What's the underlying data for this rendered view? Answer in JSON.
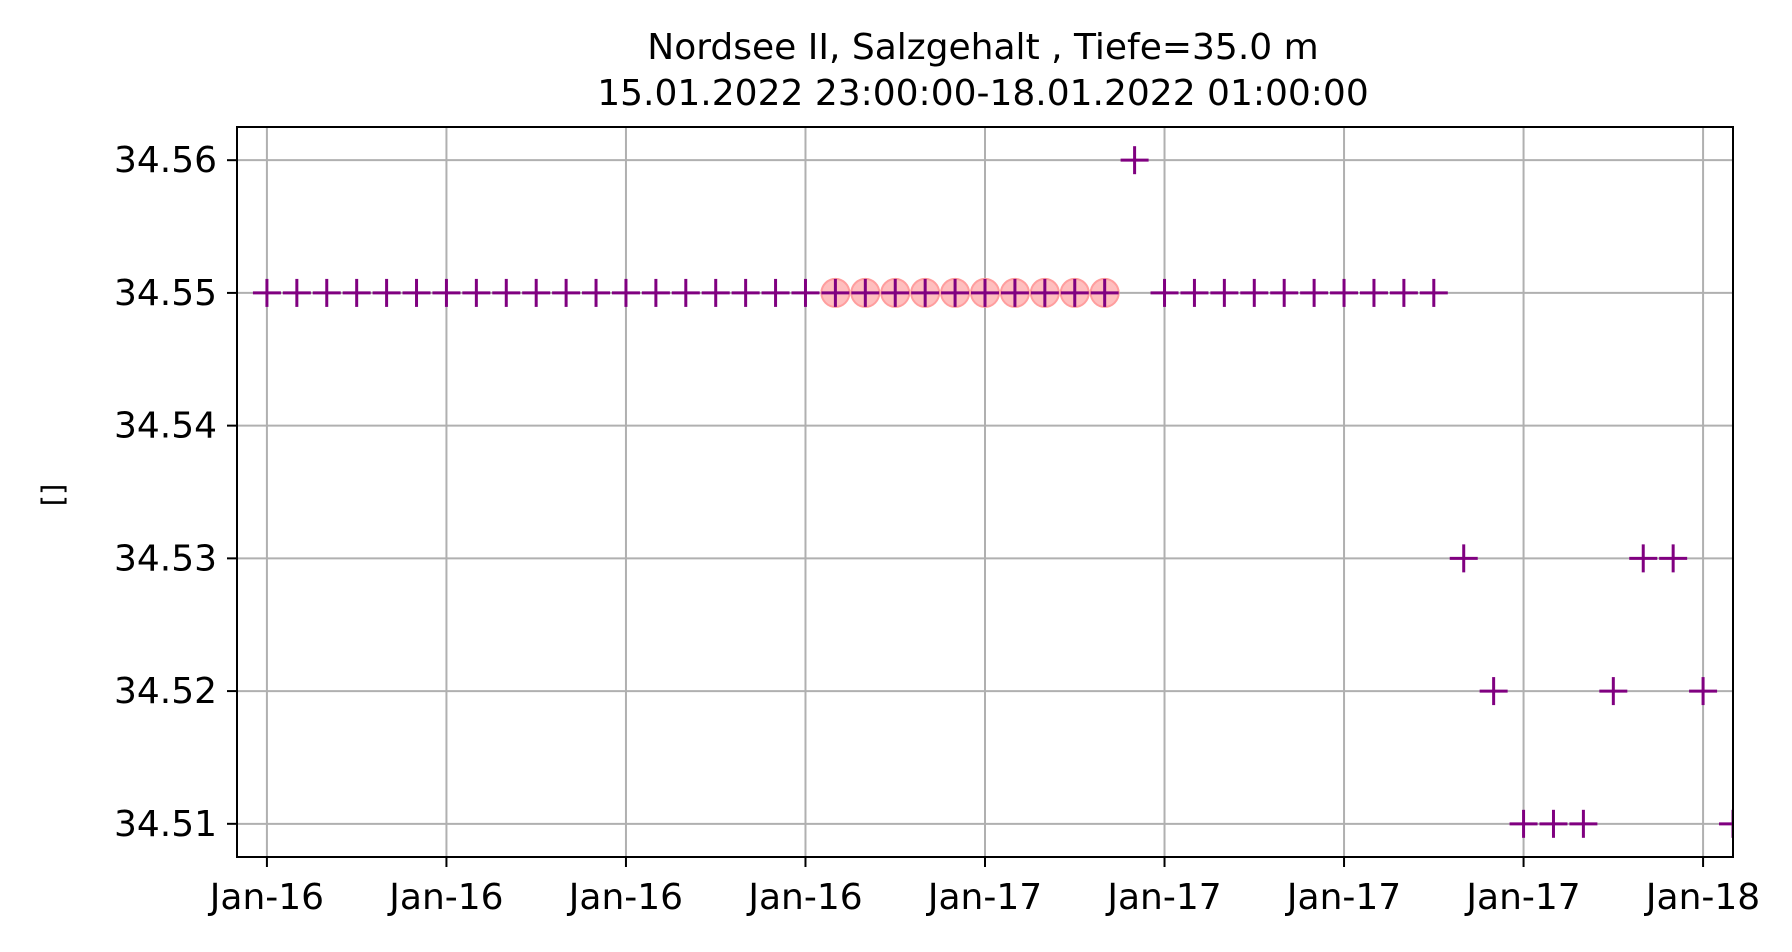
{
  "chart_data": {
    "type": "scatter",
    "title": "Nordsee II, Salzgehalt , Tiefe=35.0 m",
    "subtitle": "15.01.2022 23:00:00-18.01.2022 01:00:00",
    "xlabel": "",
    "ylabel": "[]",
    "x_ticks": [
      "Jan-16",
      "Jan-16",
      "Jan-16",
      "Jan-16",
      "Jan-17",
      "Jan-17",
      "Jan-17",
      "Jan-17",
      "Jan-18"
    ],
    "x_tick_values": [
      "2022-01-16 00:00",
      "2022-01-16 06:00",
      "2022-01-16 12:00",
      "2022-01-16 18:00",
      "2022-01-17 00:00",
      "2022-01-17 06:00",
      "2022-01-17 12:00",
      "2022-01-17 18:00",
      "2022-01-18 00:00"
    ],
    "y_ticks": [
      "34.51",
      "34.52",
      "34.53",
      "34.54",
      "34.55",
      "34.56"
    ],
    "xlim": [
      "2022-01-15 23:00",
      "2022-01-18 01:00"
    ],
    "ylim": [
      34.5075,
      34.5625
    ],
    "grid": true,
    "series": [
      {
        "marker": "plus",
        "color": "#800080",
        "x": [
          "2022-01-16 00:00",
          "2022-01-16 01:00",
          "2022-01-16 02:00",
          "2022-01-16 03:00",
          "2022-01-16 04:00",
          "2022-01-16 05:00",
          "2022-01-16 06:00",
          "2022-01-16 07:00",
          "2022-01-16 08:00",
          "2022-01-16 09:00",
          "2022-01-16 10:00",
          "2022-01-16 11:00",
          "2022-01-16 12:00",
          "2022-01-16 13:00",
          "2022-01-16 14:00",
          "2022-01-16 15:00",
          "2022-01-16 16:00",
          "2022-01-16 17:00",
          "2022-01-16 18:00",
          "2022-01-16 19:00",
          "2022-01-16 20:00",
          "2022-01-16 21:00",
          "2022-01-16 22:00",
          "2022-01-16 23:00",
          "2022-01-17 00:00",
          "2022-01-17 01:00",
          "2022-01-17 02:00",
          "2022-01-17 03:00",
          "2022-01-17 04:00",
          "2022-01-17 05:00",
          "2022-01-17 06:00",
          "2022-01-17 07:00",
          "2022-01-17 08:00",
          "2022-01-17 09:00",
          "2022-01-17 10:00",
          "2022-01-17 11:00",
          "2022-01-17 12:00",
          "2022-01-17 13:00",
          "2022-01-17 14:00",
          "2022-01-17 15:00",
          "2022-01-17 16:00",
          "2022-01-17 17:00",
          "2022-01-17 18:00",
          "2022-01-17 19:00",
          "2022-01-17 20:00",
          "2022-01-17 21:00",
          "2022-01-17 22:00",
          "2022-01-17 23:00",
          "2022-01-18 00:00",
          "2022-01-18 01:00"
        ],
        "y": [
          34.55,
          34.55,
          34.55,
          34.55,
          34.55,
          34.55,
          34.55,
          34.55,
          34.55,
          34.55,
          34.55,
          34.55,
          34.55,
          34.55,
          34.55,
          34.55,
          34.55,
          34.55,
          34.55,
          34.55,
          34.55,
          34.55,
          34.55,
          34.55,
          34.55,
          34.55,
          34.55,
          34.55,
          34.55,
          34.56,
          34.55,
          34.55,
          34.55,
          34.55,
          34.55,
          34.55,
          34.55,
          34.55,
          34.55,
          34.55,
          34.53,
          34.52,
          34.51,
          34.51,
          34.51,
          34.52,
          34.53,
          34.53,
          34.52,
          34.51
        ]
      },
      {
        "marker": "circle",
        "color": "#ffb3b3",
        "x": [
          "2022-01-16 19:00",
          "2022-01-16 20:00",
          "2022-01-16 21:00",
          "2022-01-16 22:00",
          "2022-01-16 23:00",
          "2022-01-17 00:00",
          "2022-01-17 01:00",
          "2022-01-17 02:00",
          "2022-01-17 03:00",
          "2022-01-17 04:00"
        ],
        "y": [
          34.55,
          34.55,
          34.55,
          34.55,
          34.55,
          34.55,
          34.55,
          34.55,
          34.55,
          34.55
        ]
      }
    ]
  }
}
